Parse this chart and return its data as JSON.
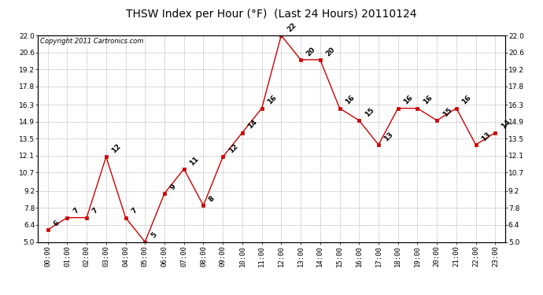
{
  "title": "THSW Index per Hour (°F)  (Last 24 Hours) 20110124",
  "copyright_text": "Copyright 2011 Cartronics.com",
  "hours": [
    0,
    1,
    2,
    3,
    4,
    5,
    6,
    7,
    8,
    9,
    10,
    11,
    12,
    13,
    14,
    15,
    16,
    17,
    18,
    19,
    20,
    21,
    22,
    23
  ],
  "values": [
    6,
    7,
    7,
    12,
    7,
    5,
    9,
    11,
    8,
    12,
    14,
    16,
    22,
    20,
    20,
    16,
    15,
    13,
    16,
    16,
    15,
    16,
    13,
    14
  ],
  "x_labels": [
    "00:00",
    "01:00",
    "02:00",
    "03:00",
    "04:00",
    "05:00",
    "06:00",
    "07:00",
    "08:00",
    "09:00",
    "10:00",
    "11:00",
    "12:00",
    "13:00",
    "14:00",
    "15:00",
    "16:00",
    "17:00",
    "18:00",
    "19:00",
    "20:00",
    "21:00",
    "22:00",
    "23:00"
  ],
  "y_ticks": [
    5.0,
    6.4,
    7.8,
    9.2,
    10.7,
    12.1,
    13.5,
    14.9,
    16.3,
    17.8,
    19.2,
    20.6,
    22.0
  ],
  "y_min": 5.0,
  "y_max": 22.0,
  "line_color": "#cc0000",
  "marker_color": "#cc0000",
  "bg_color": "#ffffff",
  "plot_bg_color": "#ffffff",
  "grid_color": "#cccccc",
  "title_fontsize": 10,
  "annotation_fontsize": 6.5,
  "tick_fontsize": 6.5,
  "copyright_fontsize": 6
}
